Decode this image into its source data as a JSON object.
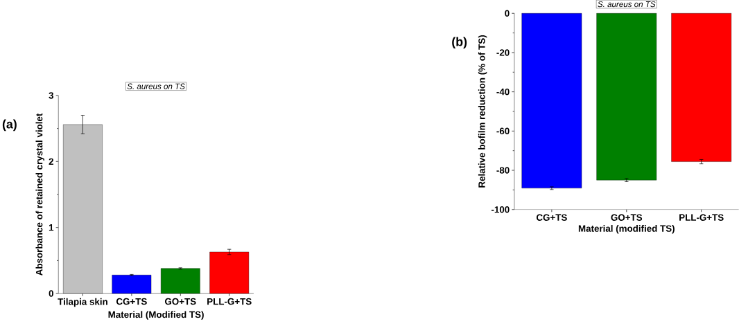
{
  "chart_data": [
    {
      "type": "bar",
      "title": "S. aureus on TS",
      "xlabel": "Material (Modified TS)",
      "ylabel": "Absorbance of retained crystal violet",
      "categories": [
        "Tilapia skin",
        "CG+TS",
        "GO+TS",
        "PLL-G+TS"
      ],
      "values": [
        2.56,
        0.28,
        0.38,
        0.63
      ],
      "errors": [
        0.14,
        0.01,
        0.01,
        0.04
      ],
      "colors": [
        "#c0c0c0",
        "#0000ff",
        "#008000",
        "#ff0000"
      ],
      "ylim": [
        0,
        3
      ],
      "yticks": [
        0,
        1,
        2,
        3
      ],
      "annotations": [
        "(a)"
      ]
    },
    {
      "type": "bar",
      "title": "S. aureus on TS",
      "xlabel": "Material (modified TS)",
      "ylabel": "Relative bofilm reduction (% of TS)",
      "categories": [
        "CG+TS",
        "GO+TS",
        "PLL-G+TS"
      ],
      "values": [
        -89.1,
        -85.0,
        -75.6
      ],
      "errors": [
        0.7,
        0.8,
        1.1
      ],
      "colors": [
        "#0000ff",
        "#008000",
        "#ff0000"
      ],
      "ylim": [
        -100,
        0
      ],
      "yticks": [
        0,
        -20,
        -40,
        -60,
        -80,
        -100
      ],
      "annotations": [
        "(b)"
      ]
    }
  ]
}
